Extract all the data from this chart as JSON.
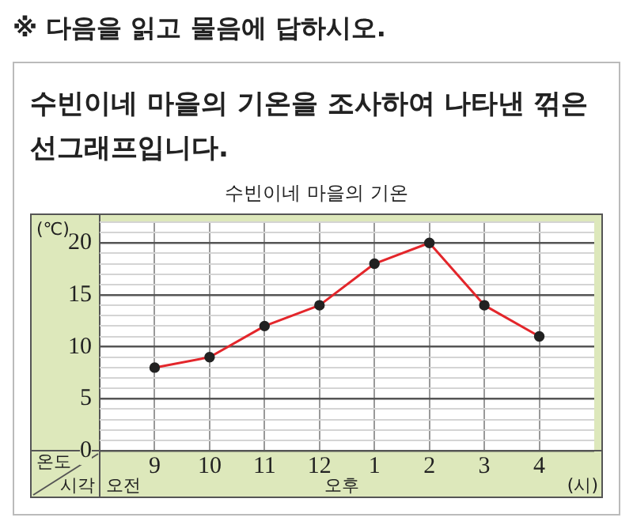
{
  "chart_data": {
    "type": "line",
    "title": "수빈이네 마을의 기온",
    "ylabel": "(℃)",
    "xlabel": "(시)",
    "categories": [
      "9",
      "10",
      "11",
      "12",
      "1",
      "2",
      "3",
      "4"
    ],
    "series": [
      {
        "color": "#e3262b",
        "values": [
          8,
          9,
          12,
          14,
          18,
          20,
          14,
          11
        ]
      }
    ],
    "ylim": [
      0,
      22
    ],
    "yticks": [
      0,
      5,
      10,
      15,
      20
    ],
    "grid": true,
    "marker": "circle",
    "annotations": [
      "※ 다음을 읽고 물음에 답하시오.",
      "수빈이네 마을의 기온을 조사하여 나타낸 꺾은선그래프입니다.",
      "오전",
      "오후",
      "온도",
      "시각"
    ]
  }
}
